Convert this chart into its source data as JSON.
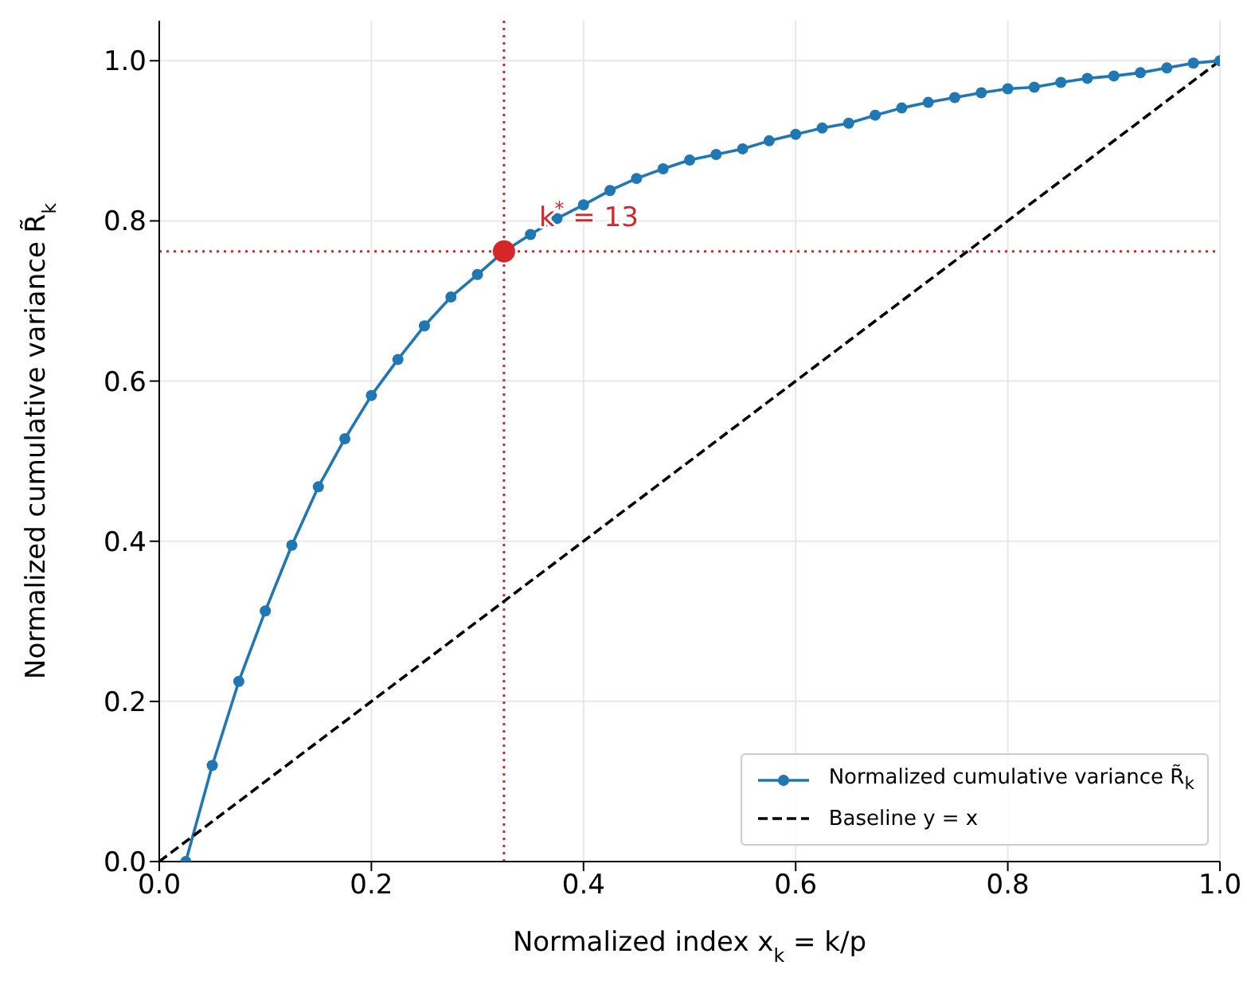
{
  "chart_data": {
    "type": "line",
    "xlabel": "Normalized index x$_{k}$ = k/p",
    "ylabel": "Normalized cumulative variance R̃$_{k}$",
    "xlim": [
      0,
      1
    ],
    "ylim": [
      0,
      1.05
    ],
    "xticks": [
      {
        "value": 0,
        "label": "0.0"
      },
      0.2,
      0.4,
      0.6,
      0.8,
      {
        "value": 1,
        "label": "1.0"
      }
    ],
    "yticks": [
      {
        "value": 0,
        "label": "0.0"
      },
      0.2,
      0.4,
      0.6,
      0.8,
      {
        "value": 1,
        "label": "1.0"
      }
    ],
    "grid": true,
    "legend": "bottom right",
    "series": [
      {
        "name": "Normalized cumulative variance R̃$_{k}$",
        "color": "#1f77b4",
        "marker": "circle",
        "line_style": "solid",
        "x": [
          0.025,
          0.05,
          0.075,
          0.1,
          0.125,
          0.15,
          0.175,
          0.2,
          0.225,
          0.25,
          0.275,
          0.3,
          0.325,
          0.35,
          0.375,
          0.4,
          0.425,
          0.45,
          0.475,
          0.5,
          0.525,
          0.55,
          0.575,
          0.6,
          0.625,
          0.65,
          0.675,
          0.7,
          0.725,
          0.75,
          0.775,
          0.8,
          0.825,
          0.85,
          0.875,
          0.9,
          0.925,
          0.95,
          0.975,
          1.0
        ],
        "values": [
          0,
          0.12,
          0.225,
          0.313,
          0.395,
          0.468,
          0.528,
          0.582,
          0.627,
          0.669,
          0.705,
          0.733,
          0.762,
          0.783,
          0.803,
          0.82,
          0.838,
          0.853,
          0.865,
          0.876,
          0.883,
          0.89,
          0.9,
          0.908,
          0.916,
          0.922,
          0.932,
          0.941,
          0.948,
          0.954,
          0.96,
          0.965,
          0.967,
          0.973,
          0.978,
          0.981,
          0.985,
          0.991,
          0.997,
          1.0
        ]
      },
      {
        "name": "Baseline y = x",
        "color": "#000000",
        "marker": "none",
        "line_style": "dashed",
        "x": [
          0,
          1
        ],
        "values": [
          0,
          1
        ]
      },
      {
        "type": "scatter",
        "color": "#d62728",
        "x": [
          0.325
        ],
        "values": [
          0.762
        ]
      }
    ],
    "ref_lines": [
      {
        "axis": "x",
        "value": 0.325,
        "color": "#d62728",
        "line_style": "dotted"
      },
      {
        "axis": "y",
        "value": 0.762,
        "color": "#d62728",
        "line_style": "dotted"
      }
    ],
    "annotations": [
      {
        "text": "k$^{*}$ = 13",
        "x": 0.325,
        "y": 0.762
      }
    ]
  }
}
